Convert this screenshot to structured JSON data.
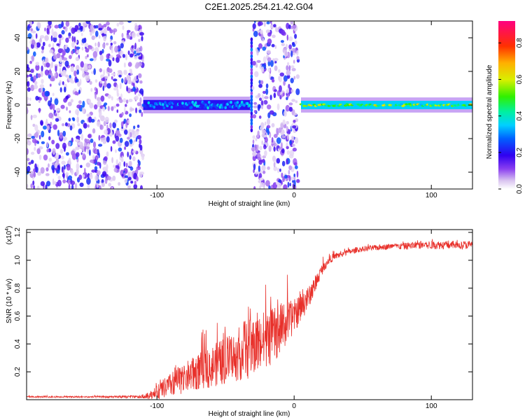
{
  "title": "C2E1.2025.254.21.42.G04",
  "chart_data": [
    {
      "type": "heatmap",
      "title": "C2E1.2025.254.21.42.G04",
      "xlabel": "Height of straight line (km)",
      "ylabel": "Frequency (Hz)",
      "xlim": [
        -195,
        130
      ],
      "ylim": [
        -50,
        50
      ],
      "xticks": [
        -100,
        0,
        100
      ],
      "xticklabels": [
        "-100",
        "0",
        "100"
      ],
      "yticks": [
        -40,
        -20,
        0,
        20,
        40
      ],
      "yticklabels": [
        "-40",
        "-20",
        "0",
        "20",
        "40"
      ],
      "regions": [
        {
          "name": "noise",
          "x": [
            -195,
            -110
          ],
          "y": [
            -50,
            50
          ],
          "amplitude": 0.15
        },
        {
          "name": "weak-carrier",
          "x": [
            -110,
            -32
          ],
          "y": [
            -3,
            3
          ],
          "amplitude": 0.35
        },
        {
          "name": "spike",
          "x": [
            -32,
            -30
          ],
          "y": [
            -15,
            40
          ],
          "amplitude": 0.2
        },
        {
          "name": "noise",
          "x": [
            -30,
            3
          ],
          "y": [
            -50,
            50
          ],
          "amplitude": 0.15
        },
        {
          "name": "strong-carrier",
          "x": [
            5,
            130
          ],
          "y": [
            -2.5,
            2.5
          ],
          "amplitude": 0.6
        }
      ],
      "colorbar": {
        "label": "Normalized spectral amplitude",
        "range": [
          0,
          0.92
        ],
        "ticks": [
          0.0,
          0.2,
          0.4,
          0.6,
          0.8
        ],
        "ticklabels": [
          "0.0",
          "0.2",
          "0.4",
          "0.6",
          "0.8"
        ]
      }
    },
    {
      "type": "line",
      "xlabel": "Height of straight line (km)",
      "ylabel": "SNR (10 * v/v)",
      "multiplier": "(x10",
      "multiplier_exp": "4",
      "multiplier_close": ")",
      "xlim": [
        -195,
        130
      ],
      "ylim": [
        0,
        1.22
      ],
      "xticks": [
        -100,
        0,
        100
      ],
      "xticklabels": [
        "-100",
        "0",
        "100"
      ],
      "yticks": [
        0.2,
        0.4,
        0.6,
        0.8,
        1.0,
        1.2
      ],
      "yticklabels": [
        "0.2",
        "0.4",
        "0.6",
        "0.8",
        "1.0",
        "1.2"
      ],
      "color": "#e8302a",
      "series": [
        {
          "name": "SNR",
          "x": [
            -195,
            -150,
            -110,
            -102,
            -95,
            -85,
            -75,
            -65,
            -55,
            -45,
            -38,
            -30,
            -22,
            -15,
            -10,
            -5,
            0,
            5,
            10,
            15,
            20,
            25,
            30,
            40,
            50,
            60,
            70,
            80,
            90,
            100,
            110,
            120,
            130
          ],
          "y": [
            0.02,
            0.02,
            0.02,
            0.04,
            0.08,
            0.13,
            0.18,
            0.22,
            0.26,
            0.3,
            0.34,
            0.38,
            0.42,
            0.46,
            0.5,
            0.55,
            0.6,
            0.66,
            0.72,
            0.82,
            0.93,
            1.0,
            1.03,
            1.06,
            1.08,
            1.09,
            1.1,
            1.1,
            1.11,
            1.11,
            1.11,
            1.11,
            1.11
          ],
          "noise_amplitude": [
            0.005,
            0.005,
            0.01,
            0.04,
            0.07,
            0.1,
            0.12,
            0.14,
            0.16,
            0.18,
            0.2,
            0.22,
            0.22,
            0.2,
            0.18,
            0.15,
            0.12,
            0.1,
            0.08,
            0.06,
            0.04,
            0.03,
            0.025,
            0.02,
            0.02,
            0.02,
            0.02,
            0.025,
            0.03,
            0.03,
            0.03,
            0.03,
            0.03
          ]
        }
      ]
    }
  ]
}
